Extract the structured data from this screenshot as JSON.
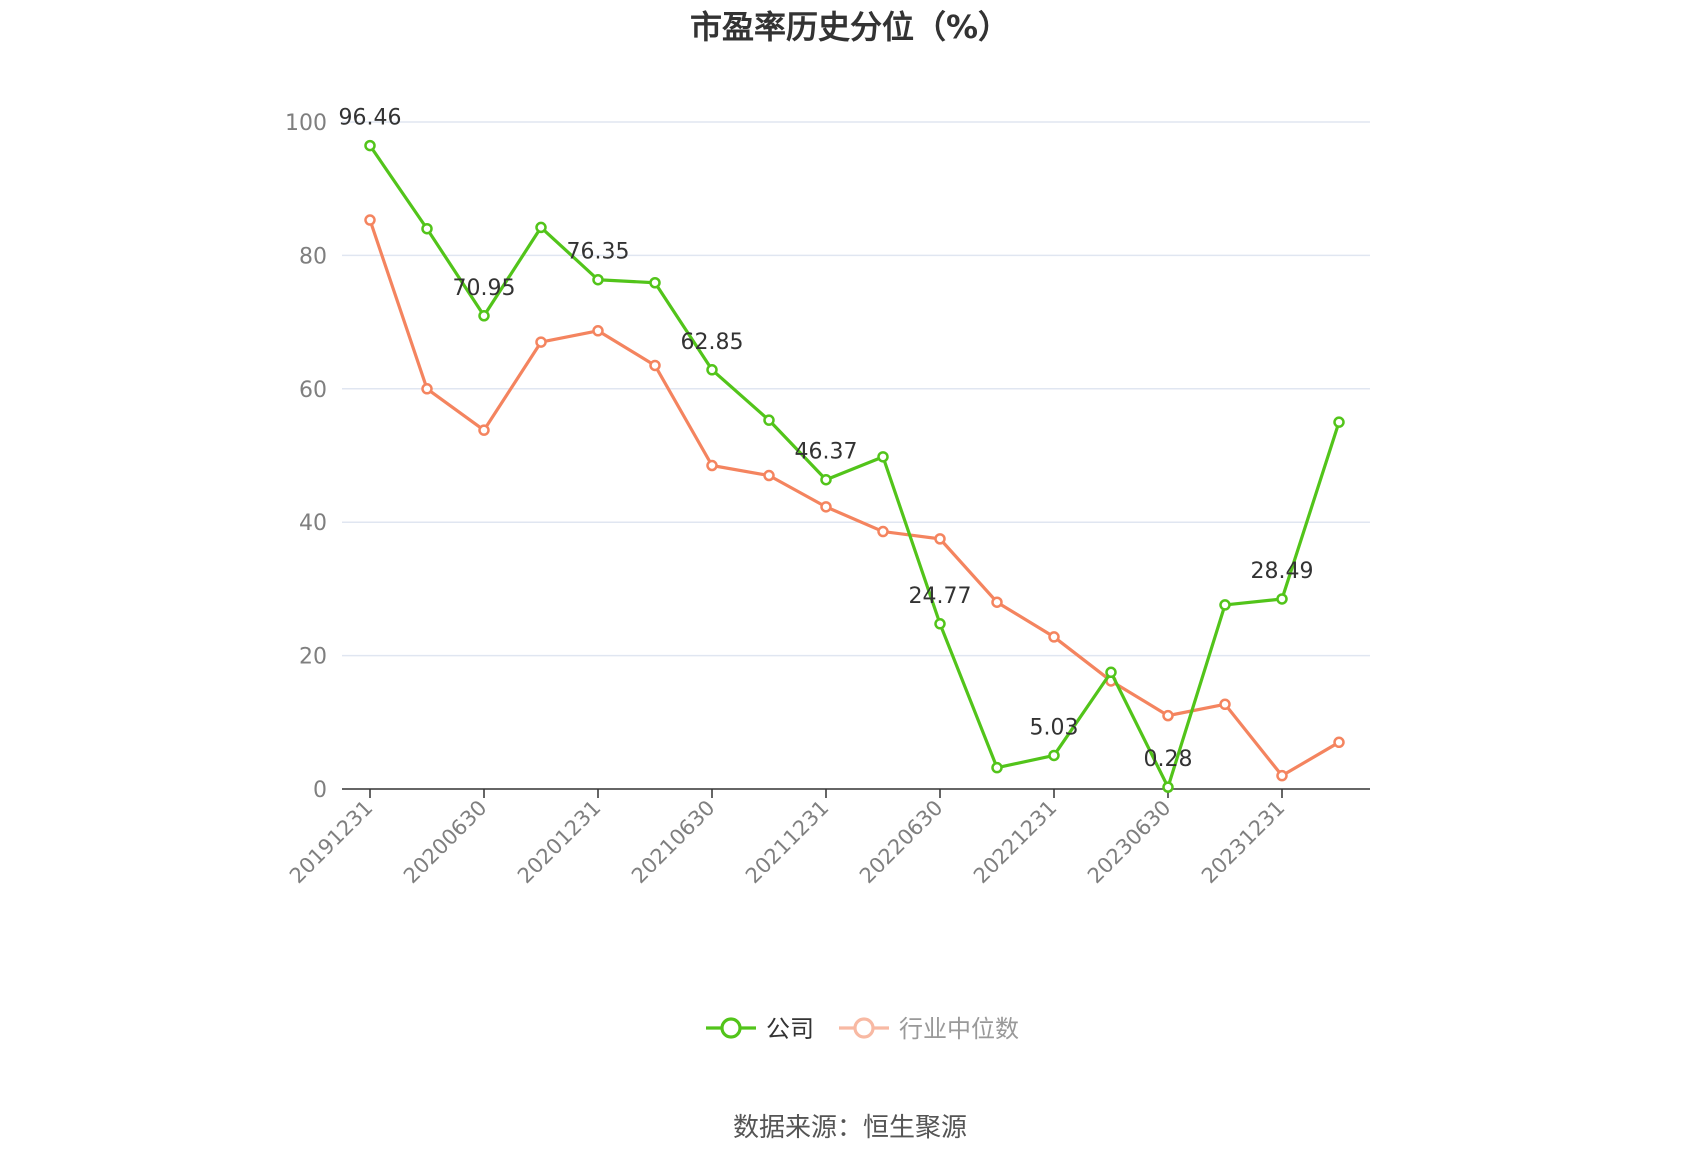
{
  "chart_data": {
    "type": "line",
    "title": "市盈率历史分位（%）",
    "xlabel": "",
    "ylabel": "",
    "ylim": [
      0,
      100
    ],
    "yticks": [
      0,
      20,
      40,
      60,
      80,
      100
    ],
    "grid": true,
    "legend_position": "bottom",
    "x": [
      "20191231",
      "20200331",
      "20200630",
      "20200930",
      "20201231",
      "20210331",
      "20210630",
      "20210930",
      "20211231",
      "20220331",
      "20220630",
      "20220930",
      "20221231",
      "20230331",
      "20230630",
      "20230930",
      "20231231",
      "20240331"
    ],
    "xtick_labels": [
      "20191231",
      "20200630",
      "20201231",
      "20210630",
      "20211231",
      "20220630",
      "20221231",
      "20230630",
      "20231231"
    ],
    "series": [
      {
        "name": "公司",
        "color": "#52c41a",
        "values": [
          96.46,
          84.0,
          70.95,
          84.2,
          76.35,
          75.9,
          62.85,
          55.3,
          46.37,
          49.8,
          24.77,
          3.2,
          5.03,
          17.5,
          0.28,
          27.6,
          28.49,
          55.0
        ],
        "labels": {
          "0": "96.46",
          "2": "70.95",
          "4": "76.35",
          "6": "62.85",
          "8": "46.37",
          "10": "24.77",
          "12": "5.03",
          "14": "0.28",
          "16": "28.49"
        }
      },
      {
        "name": "行业中位数",
        "color": "#f4845f",
        "values": [
          85.3,
          60.0,
          53.8,
          67.0,
          68.7,
          63.5,
          48.5,
          47.0,
          42.3,
          38.6,
          37.5,
          28.0,
          22.8,
          16.2,
          11.0,
          12.7,
          2.0,
          7.0
        ]
      }
    ]
  },
  "source": "数据来源：恒生聚源",
  "colors": {
    "grid": "#e0e6f1",
    "axis": "#333333",
    "legend_inactive_text": "#999999",
    "legend_inactive_icon": "#f8b9a3"
  }
}
